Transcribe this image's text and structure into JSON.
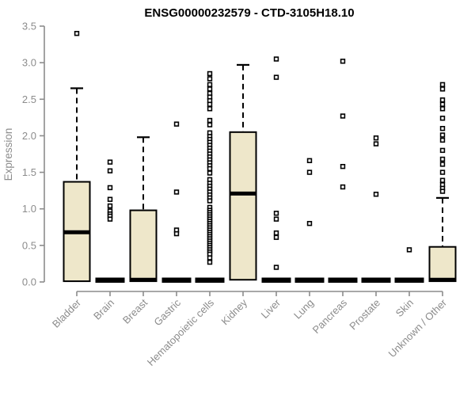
{
  "chart_data": {
    "type": "boxplot",
    "title": "ENSG00000232579 - CTD-3105H18.10",
    "xlabel": "",
    "ylabel": "Expression",
    "ylim": [
      0,
      3.5
    ],
    "yticks": [
      0.0,
      0.5,
      1.0,
      1.5,
      2.0,
      2.5,
      3.0,
      3.5
    ],
    "grid": false,
    "legend": "none",
    "x_tick_rotation_degrees": 45,
    "colors": {
      "box_fill": "#EEE7CA",
      "box_stroke": "#000000",
      "median": "#000000",
      "axis": "#8c8c8c",
      "tick_label": "#8c8c8c",
      "title": "#000000",
      "outlier_stroke": "#000000",
      "outlier_fill": "#ffffff",
      "background": "#ffffff"
    },
    "categories": [
      "Bladder",
      "Brain",
      "Breast",
      "Gastric",
      "Hematopoietic cells",
      "Kidney",
      "Liver",
      "Lung",
      "Pancreas",
      "Prostate",
      "Skin",
      "Unknown / Other"
    ],
    "boxes": [
      {
        "category": "Bladder",
        "collapsed": false,
        "q1": 0.01,
        "median": 0.68,
        "q3": 1.37,
        "whisker_low": 0.01,
        "whisker_high": 2.65,
        "outliers": [
          3.4
        ]
      },
      {
        "category": "Brain",
        "collapsed": true,
        "q1": 0,
        "median": 0.02,
        "q3": 0.03,
        "whisker_low": 0,
        "whisker_high": 0.03,
        "outliers": [
          1.64,
          1.52,
          1.29,
          1.13,
          1.04,
          0.97,
          0.93,
          0.9,
          0.86
        ]
      },
      {
        "category": "Breast",
        "collapsed": false,
        "q1": 0.01,
        "median": 0.03,
        "q3": 0.98,
        "whisker_low": 0.01,
        "whisker_high": 1.98,
        "outliers": []
      },
      {
        "category": "Gastric",
        "collapsed": true,
        "q1": 0,
        "median": 0.02,
        "q3": 0.03,
        "whisker_low": 0,
        "whisker_high": 0.03,
        "outliers": [
          2.16,
          1.23,
          0.71,
          0.66
        ]
      },
      {
        "category": "Hematopoietic cells",
        "collapsed": true,
        "q1": 0,
        "median": 0.02,
        "q3": 0.03,
        "whisker_low": 0,
        "whisker_high": 0.03,
        "outliers": [
          2.85,
          2.78,
          2.7,
          2.64,
          2.58,
          2.53,
          2.48,
          2.43,
          2.37,
          2.21,
          2.15,
          2.04,
          1.99,
          1.95,
          1.91,
          1.87,
          1.83,
          1.79,
          1.75,
          1.71,
          1.67,
          1.63,
          1.59,
          1.55,
          1.49,
          1.4,
          1.35,
          1.31,
          1.27,
          1.23,
          1.19,
          1.15,
          1.11,
          1.02,
          0.98,
          0.95,
          0.92,
          0.89,
          0.86,
          0.83,
          0.8,
          0.77,
          0.74,
          0.71,
          0.68,
          0.65,
          0.62,
          0.59,
          0.56,
          0.53,
          0.5,
          0.47,
          0.44,
          0.41,
          0.38,
          0.33,
          0.27
        ]
      },
      {
        "category": "Kidney",
        "collapsed": false,
        "q1": 0.03,
        "median": 1.21,
        "q3": 2.05,
        "whisker_low": 0.03,
        "whisker_high": 2.97,
        "outliers": []
      },
      {
        "category": "Liver",
        "collapsed": true,
        "q1": 0,
        "median": 0.02,
        "q3": 0.03,
        "whisker_low": 0,
        "whisker_high": 0.03,
        "outliers": [
          3.05,
          2.8,
          0.94,
          0.86,
          0.67,
          0.61,
          0.2
        ]
      },
      {
        "category": "Lung",
        "collapsed": true,
        "q1": 0,
        "median": 0.02,
        "q3": 0.03,
        "whisker_low": 0,
        "whisker_high": 0.03,
        "outliers": [
          1.66,
          1.5,
          0.8
        ]
      },
      {
        "category": "Pancreas",
        "collapsed": true,
        "q1": 0,
        "median": 0.02,
        "q3": 0.03,
        "whisker_low": 0,
        "whisker_high": 0.03,
        "outliers": [
          3.02,
          2.27,
          1.58,
          1.3
        ]
      },
      {
        "category": "Prostate",
        "collapsed": true,
        "q1": 0,
        "median": 0.02,
        "q3": 0.03,
        "whisker_low": 0,
        "whisker_high": 0.03,
        "outliers": [
          1.97,
          1.89,
          1.2
        ]
      },
      {
        "category": "Skin",
        "collapsed": true,
        "q1": 0,
        "median": 0.02,
        "q3": 0.03,
        "whisker_low": 0,
        "whisker_high": 0.03,
        "outliers": [
          0.44
        ]
      },
      {
        "category": "Unknown / Other",
        "collapsed": false,
        "q1": 0.01,
        "median": 0.03,
        "q3": 0.48,
        "whisker_low": 0.01,
        "whisker_high": 1.15,
        "outliers": [
          2.7,
          2.64,
          2.49,
          2.43,
          2.37,
          2.24,
          2.1,
          2.01,
          1.94,
          1.8,
          1.68,
          1.61,
          1.5,
          1.39,
          1.33,
          1.28,
          1.24
        ]
      }
    ]
  }
}
